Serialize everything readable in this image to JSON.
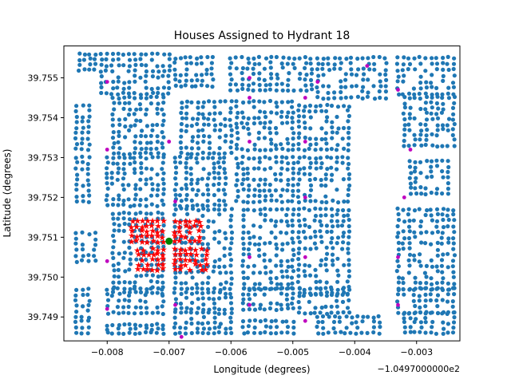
{
  "chart_data": {
    "type": "scatter",
    "title": "Houses Assigned to Hydrant 18",
    "xlabel": "Longitude (degrees)",
    "ylabel": "Latitude (degrees)",
    "x_offset_label": "−1.0497000000e2",
    "xlim": [
      -0.0087,
      -0.0023
    ],
    "ylim": [
      39.7484,
      39.7558
    ],
    "x_ticks": [
      -0.008,
      -0.007,
      -0.006,
      -0.005,
      -0.004,
      -0.003
    ],
    "x_tick_labels": [
      "−0.008",
      "−0.007",
      "−0.006",
      "−0.005",
      "−0.004",
      "−0.003"
    ],
    "y_ticks": [
      39.749,
      39.75,
      39.751,
      39.752,
      39.753,
      39.754,
      39.755
    ],
    "y_tick_labels": [
      "39.749",
      "39.750",
      "39.751",
      "39.752",
      "39.753",
      "39.754",
      "39.755"
    ],
    "grid": false,
    "legend": "none",
    "colors": {
      "houses": "#1f77b4",
      "assigned_houses": "#ff0000",
      "hydrants": "#bf00bf",
      "selected_hydrant": "#008000"
    },
    "blocks": [
      {
        "x": [
          -0.00845,
          -0.0082
        ],
        "y": [
          39.7552,
          39.7556
        ]
      },
      {
        "x": [
          -0.0081,
          -0.007
        ],
        "y": [
          39.7546,
          39.7556
        ]
      },
      {
        "x": [
          -0.0069,
          -0.0063
        ],
        "y": [
          39.7548,
          39.7555
        ]
      },
      {
        "x": [
          -0.006,
          -0.0047
        ],
        "y": [
          39.7547,
          39.7555
        ]
      },
      {
        "x": [
          -0.0046,
          -0.0035
        ],
        "y": [
          39.7545,
          39.7555
        ]
      },
      {
        "x": [
          -0.0033,
          -0.0024
        ],
        "y": [
          39.7546,
          39.7555
        ]
      },
      {
        "x": [
          -0.0085,
          -0.0083
        ],
        "y": [
          39.7532,
          39.7543
        ]
      },
      {
        "x": [
          -0.0079,
          -0.0071
        ],
        "y": [
          39.7531,
          39.7545
        ]
      },
      {
        "x": [
          -0.0068,
          -0.006
        ],
        "y": [
          39.7531,
          39.7544
        ]
      },
      {
        "x": [
          -0.0059,
          -0.005
        ],
        "y": [
          39.7532,
          39.7544
        ]
      },
      {
        "x": [
          -0.0049,
          -0.0041
        ],
        "y": [
          39.7532,
          39.7543
        ]
      },
      {
        "x": [
          -0.0032,
          -0.0024
        ],
        "y": [
          39.7533,
          39.7545
        ]
      },
      {
        "x": [
          -0.0085,
          -0.0083
        ],
        "y": [
          39.7519,
          39.753
        ]
      },
      {
        "x": [
          -0.008,
          -0.0071
        ],
        "y": [
          39.7518,
          39.753
        ]
      },
      {
        "x": [
          -0.0069,
          -0.0061
        ],
        "y": [
          39.7518,
          39.753
        ]
      },
      {
        "x": [
          -0.0059,
          -0.005
        ],
        "y": [
          39.7519,
          39.753
        ]
      },
      {
        "x": [
          -0.0049,
          -0.0041
        ],
        "y": [
          39.7519,
          39.753
        ]
      },
      {
        "x": [
          -0.0031,
          -0.0025
        ],
        "y": [
          39.7521,
          39.7529
        ]
      },
      {
        "x": [
          -0.0085,
          -0.0082
        ],
        "y": [
          39.7504,
          39.7511
        ]
      },
      {
        "x": [
          -0.0079,
          -0.0071
        ],
        "y": [
          39.7496,
          39.7516
        ]
      },
      {
        "x": [
          -0.0069,
          -0.006
        ],
        "y": [
          39.7497,
          39.7517
        ]
      },
      {
        "x": [
          -0.0058,
          -0.005
        ],
        "y": [
          39.7497,
          39.7517
        ]
      },
      {
        "x": [
          -0.0049,
          -0.0041
        ],
        "y": [
          39.7496,
          39.7517
        ]
      },
      {
        "x": [
          -0.0033,
          -0.0024
        ],
        "y": [
          39.7497,
          39.7517
        ]
      },
      {
        "x": [
          -0.0085,
          -0.0083
        ],
        "y": [
          39.749,
          39.7497
        ]
      },
      {
        "x": [
          -0.008,
          -0.0071
        ],
        "y": [
          39.7491,
          39.7497
        ]
      },
      {
        "x": [
          -0.0069,
          -0.006
        ],
        "y": [
          39.7492,
          39.7496
        ]
      },
      {
        "x": [
          -0.0058,
          -0.005
        ],
        "y": [
          39.7492,
          39.7497
        ]
      },
      {
        "x": [
          -0.0049,
          -0.0041
        ],
        "y": [
          39.7491,
          39.7497
        ]
      },
      {
        "x": [
          -0.0033,
          -0.0024
        ],
        "y": [
          39.7491,
          39.7497
        ]
      },
      {
        "x": [
          -0.0085,
          -0.0083
        ],
        "y": [
          39.7486,
          39.7489
        ]
      },
      {
        "x": [
          -0.008,
          -0.0071
        ],
        "y": [
          39.7486,
          39.7488
        ]
      },
      {
        "x": [
          -0.0069,
          -0.006
        ],
        "y": [
          39.7486,
          39.7491
        ]
      },
      {
        "x": [
          -0.0058,
          -0.005
        ],
        "y": [
          39.7486,
          39.7489
        ]
      },
      {
        "x": [
          -0.0046,
          -0.0036
        ],
        "y": [
          39.7486,
          39.749
        ]
      },
      {
        "x": [
          -0.0032,
          -0.0024
        ],
        "y": [
          39.7486,
          39.7491
        ]
      }
    ],
    "assigned_blocks": [
      {
        "x": [
          -0.0076,
          -0.0071
        ],
        "y": [
          39.7509,
          39.7514
        ]
      },
      {
        "x": [
          -0.0075,
          -0.0071
        ],
        "y": [
          39.7502,
          39.7507
        ]
      },
      {
        "x": [
          -0.0069,
          -0.0065
        ],
        "y": [
          39.7509,
          39.7514
        ]
      },
      {
        "x": [
          -0.0069,
          -0.0064
        ],
        "y": [
          39.7502,
          39.7507
        ]
      }
    ],
    "hydrants": [
      {
        "x": -0.008,
        "y": 39.7549
      },
      {
        "x": -0.0057,
        "y": 39.755
      },
      {
        "x": -0.0046,
        "y": 39.7549
      },
      {
        "x": -0.0038,
        "y": 39.7553
      },
      {
        "x": -0.0033,
        "y": 39.7547
      },
      {
        "x": -0.0057,
        "y": 39.7545
      },
      {
        "x": -0.0048,
        "y": 39.7545
      },
      {
        "x": -0.008,
        "y": 39.7532
      },
      {
        "x": -0.007,
        "y": 39.7534
      },
      {
        "x": -0.0057,
        "y": 39.7534
      },
      {
        "x": -0.0048,
        "y": 39.7534
      },
      {
        "x": -0.0031,
        "y": 39.7532
      },
      {
        "x": -0.0069,
        "y": 39.7519
      },
      {
        "x": -0.0048,
        "y": 39.752
      },
      {
        "x": -0.0032,
        "y": 39.752
      },
      {
        "x": -0.008,
        "y": 39.7504
      },
      {
        "x": -0.0057,
        "y": 39.7505
      },
      {
        "x": -0.0048,
        "y": 39.7505
      },
      {
        "x": -0.0033,
        "y": 39.7505
      },
      {
        "x": -0.008,
        "y": 39.7492
      },
      {
        "x": -0.0069,
        "y": 39.7493
      },
      {
        "x": -0.0057,
        "y": 39.7493
      },
      {
        "x": -0.0033,
        "y": 39.7493
      },
      {
        "x": -0.0048,
        "y": 39.7489
      },
      {
        "x": -0.0068,
        "y": 39.7485
      }
    ],
    "selected_hydrant": {
      "x": -0.007,
      "y": 39.7509
    }
  }
}
